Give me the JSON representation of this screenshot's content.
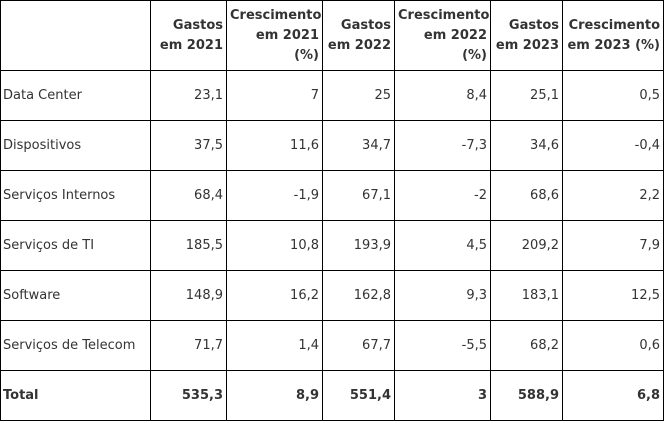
{
  "chart_data": {
    "type": "table",
    "columns": [
      "",
      "Gastos em 2021",
      "Crescimento em 2021 (%)",
      "Gastos em 2022",
      "Crescimento em 2022 (%)",
      "Gastos em 2023",
      "Crescimento em 2023 (%)"
    ],
    "rows": [
      [
        "Data Center",
        "23,1",
        "7",
        "25",
        "8,4",
        "25,1",
        "0,5"
      ],
      [
        "Dispositivos",
        "37,5",
        "11,6",
        "34,7",
        "-7,3",
        "34,6",
        "-0,4"
      ],
      [
        "Serviços Internos",
        "68,4",
        "-1,9",
        "67,1",
        "-2",
        "68,6",
        "2,2"
      ],
      [
        "Serviços de TI",
        "185,5",
        "10,8",
        "193,9",
        "4,5",
        "209,2",
        "7,9"
      ],
      [
        "Software",
        "148,9",
        "16,2",
        "162,8",
        "9,3",
        "183,1",
        "12,5"
      ],
      [
        "Serviços de Telecom",
        "71,7",
        "1,4",
        "67,7",
        "-5,5",
        "68,2",
        "0,6"
      ],
      [
        "Total",
        "535,3",
        "8,9",
        "551,4",
        "3",
        "588,9",
        "6,8"
      ]
    ]
  }
}
